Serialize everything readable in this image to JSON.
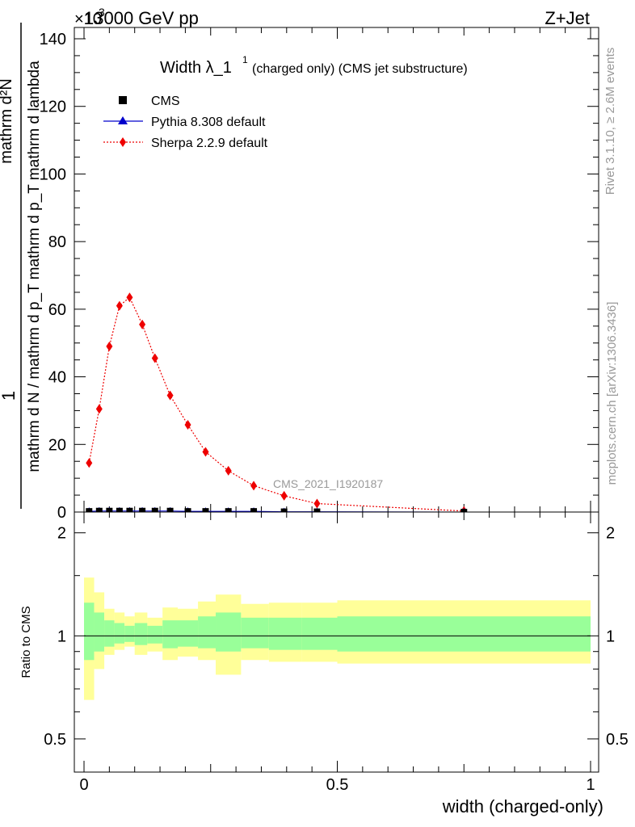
{
  "header": {
    "energy_label": "13000 GeV pp",
    "process_label": "Z+Jet",
    "exponent_label": "×10",
    "exponent_power": "3"
  },
  "side_labels": {
    "rivet": "Rivet 3.1.10, ≥ 2.6M events",
    "mcplots": "mcplots.cern.ch [arXiv:1306.3436]"
  },
  "title": {
    "main": "Width λ_1",
    "superscript": "1",
    "suffix": "(charged only) (CMS jet substructure)"
  },
  "watermark": "CMS_2021_I1920187",
  "legend": [
    {
      "label": "CMS",
      "marker": "square",
      "color": "#000000"
    },
    {
      "label": "Pythia 8.308 default",
      "marker": "triangle",
      "color": "#0000cc"
    },
    {
      "label": "Sherpa 2.2.9 default",
      "marker": "diamond",
      "color": "#ee0000"
    }
  ],
  "ylabel": {
    "numerator": "1",
    "denominator": "mathrm d N / mathrm d p_T mathrm d p_T mathrm d lambda",
    "upper": "mathrm d²N"
  },
  "ratio_ylabel": "Ratio to CMS",
  "xlabel": "width (charged-only)",
  "colors": {
    "cms": "#000000",
    "pythia": "#0000cc",
    "sherpa": "#ee0000",
    "band_outer": "#ffff99",
    "band_inner": "#99ff99"
  },
  "chart_data": [
    {
      "type": "scatter",
      "panel": "main",
      "xlim": [
        0,
        1
      ],
      "ylim": [
        0,
        140
      ],
      "y_scale_factor": "×10^3",
      "y_ticks": [
        0,
        20,
        40,
        60,
        80,
        100,
        120,
        140
      ],
      "series": [
        {
          "name": "Sherpa 2.2.9 default",
          "x": [
            0.01,
            0.03,
            0.05,
            0.07,
            0.09,
            0.115,
            0.14,
            0.17,
            0.205,
            0.24,
            0.285,
            0.335,
            0.395,
            0.46,
            0.75
          ],
          "values": [
            14.5,
            30.5,
            49,
            61,
            63.5,
            55.5,
            45.5,
            34.5,
            25.8,
            17.8,
            12.2,
            7.8,
            4.8,
            2.5,
            0.3
          ]
        },
        {
          "name": "CMS",
          "x": [
            0.01,
            0.03,
            0.05,
            0.07,
            0.09,
            0.115,
            0.14,
            0.17,
            0.205,
            0.24,
            0.285,
            0.335,
            0.395,
            0.46,
            0.75
          ],
          "values": [
            0.2,
            0.3,
            0.3,
            0.3,
            0.3,
            0.3,
            0.3,
            0.3,
            0.2,
            0.2,
            0.2,
            0.2,
            0.1,
            0.1,
            0.0
          ]
        },
        {
          "name": "Pythia 8.308 default",
          "x": [
            0.01,
            0.03,
            0.05,
            0.07,
            0.09,
            0.115,
            0.14,
            0.17,
            0.205,
            0.24,
            0.285,
            0.335,
            0.395,
            0.46,
            0.75
          ],
          "values": [
            0.2,
            0.3,
            0.3,
            0.3,
            0.3,
            0.3,
            0.3,
            0.3,
            0.2,
            0.2,
            0.2,
            0.2,
            0.1,
            0.1,
            0.0
          ]
        }
      ]
    },
    {
      "type": "area",
      "panel": "ratio",
      "xlim": [
        0,
        1
      ],
      "ylim": [
        0.4,
        2.3
      ],
      "y_ticks": [
        0.5,
        1,
        2
      ],
      "reference_line": 1,
      "bins": [
        0,
        0.02,
        0.04,
        0.06,
        0.08,
        0.1,
        0.125,
        0.155,
        0.185,
        0.225,
        0.26,
        0.31,
        0.365,
        0.43,
        0.5,
        1.0
      ],
      "outer_band": {
        "lower": [
          0.65,
          0.8,
          0.88,
          0.91,
          0.93,
          0.88,
          0.9,
          0.85,
          0.87,
          0.85,
          0.77,
          0.85,
          0.84,
          0.84,
          0.83
        ],
        "upper": [
          1.48,
          1.34,
          1.2,
          1.17,
          1.14,
          1.17,
          1.13,
          1.21,
          1.2,
          1.26,
          1.32,
          1.24,
          1.25,
          1.25,
          1.27
        ]
      },
      "inner_band": {
        "lower": [
          0.85,
          0.9,
          0.93,
          0.95,
          0.96,
          0.94,
          0.95,
          0.92,
          0.93,
          0.92,
          0.9,
          0.92,
          0.91,
          0.91,
          0.9
        ],
        "upper": [
          1.25,
          1.17,
          1.11,
          1.09,
          1.07,
          1.09,
          1.07,
          1.11,
          1.11,
          1.14,
          1.17,
          1.13,
          1.13,
          1.13,
          1.14
        ]
      }
    }
  ],
  "x_ticks": [
    0,
    0.5,
    1
  ],
  "x_tick_labels": [
    "0",
    "0.5",
    "1"
  ]
}
